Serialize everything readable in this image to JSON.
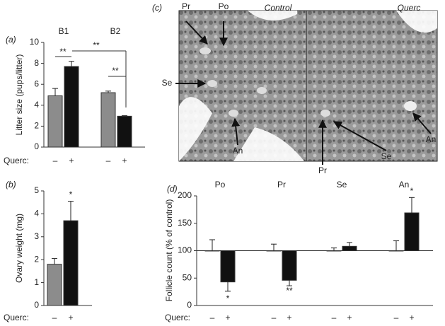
{
  "chart_data": [
    {
      "type": "bar",
      "panel": "(a)",
      "y_label": "Litter size (pups/litter)",
      "x_label": "Querc:",
      "groups": [
        "B1",
        "B2"
      ],
      "conditions": [
        "–",
        "+"
      ],
      "ylim": [
        0,
        10
      ],
      "yticks": [
        0,
        2,
        4,
        6,
        8,
        10
      ],
      "series": [
        {
          "color": "#8c8c8c",
          "values": [
            4.9,
            5.2
          ],
          "errors": [
            0.7,
            0.15
          ]
        },
        {
          "color": "#111111",
          "values": [
            7.7,
            2.95
          ],
          "errors": [
            0.5,
            0.05
          ]
        }
      ],
      "annotations": [
        "**",
        "**",
        "**"
      ]
    },
    {
      "type": "bar",
      "panel": "(b)",
      "y_label": "Ovary weight (mg)",
      "x_label": "Querc:",
      "conditions": [
        "–",
        "+"
      ],
      "ylim": [
        0,
        5
      ],
      "yticks": [
        0,
        1,
        2,
        3,
        4,
        5
      ],
      "series": [
        {
          "color": "#8c8c8c",
          "values": [
            1.8
          ],
          "errors": [
            0.25
          ]
        },
        {
          "color": "#111111",
          "values": [
            3.7
          ],
          "errors": [
            0.85
          ]
        }
      ],
      "annotations": [
        "*"
      ]
    },
    {
      "type": "bar",
      "panel": "(d)",
      "y_label": "Follicle count (% of control)",
      "x_label": "Querc:",
      "groups": [
        "Po",
        "Pr",
        "Se",
        "An"
      ],
      "conditions": [
        "–",
        "+"
      ],
      "baseline": 100,
      "ylim": [
        0,
        200
      ],
      "yticks": [
        0,
        50,
        100,
        150,
        200
      ],
      "series": [
        {
          "color": "#ffffff",
          "values": [
            100,
            100,
            100,
            100
          ],
          "errors": [
            20,
            12,
            5,
            18
          ]
        },
        {
          "color": "#111111",
          "values": [
            43,
            46,
            108,
            169
          ],
          "errors": [
            17,
            10,
            7,
            28
          ]
        }
      ],
      "annotations": [
        "*",
        "**",
        "*"
      ]
    }
  ],
  "image_panel": {
    "panel": "(c)",
    "titles": [
      "Control",
      "Querc"
    ],
    "markers": [
      "Pr",
      "Po",
      "Se",
      "An",
      "Se",
      "An",
      "Pr"
    ]
  }
}
